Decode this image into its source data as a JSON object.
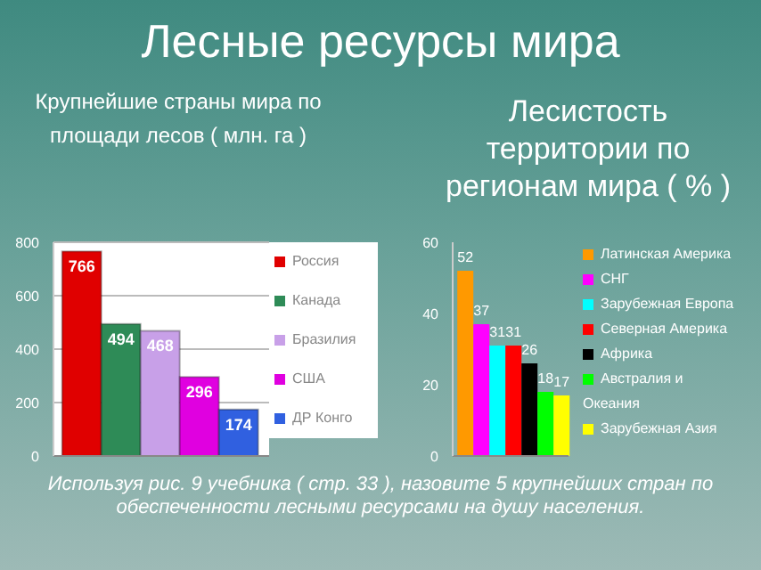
{
  "chart_data": [
    {
      "type": "bar",
      "title": "Лесные ресурсы мира",
      "subtitle": "Крупнейшие страны мира по площади лесов ( млн. га )",
      "categories": [
        null
      ],
      "series": [
        {
          "name": "Россия",
          "color": "#e00000",
          "values": [
            766
          ]
        },
        {
          "name": "Канада",
          "color": "#2e8b57",
          "values": [
            494
          ]
        },
        {
          "name": "Бразилия",
          "color": "#c8a0e8",
          "values": [
            468
          ]
        },
        {
          "name": "США",
          "color": "#e000e0",
          "values": [
            296
          ]
        },
        {
          "name": "ДР Конго",
          "color": "#3060e0",
          "values": [
            174
          ]
        }
      ],
      "ylim": [
        0,
        800
      ],
      "yticks": [
        0,
        200,
        400,
        600,
        800
      ],
      "grid": "y",
      "legend": "right",
      "data_labels": true,
      "annotations": [
        "Используя рис. 9 учебника ( стр. 33 ), назовите 5 крупнейших стран по обеспеченности лесными ресурсами на душу населения."
      ]
    },
    {
      "type": "bar",
      "title": "Лесистость территории по регионам мира ( % )",
      "categories": [
        null
      ],
      "series": [
        {
          "name": "Латинская Америка",
          "color": "#ff9900",
          "values": [
            52
          ]
        },
        {
          "name": "СНГ",
          "color": "#ff00ff",
          "values": [
            37
          ]
        },
        {
          "name": "Зарубежная Европа",
          "color": "#00ffff",
          "values": [
            31
          ]
        },
        {
          "name": "Северная Америка",
          "color": "#ff0000",
          "values": [
            31
          ]
        },
        {
          "name": "Африка",
          "color": "#000000",
          "values": [
            26
          ]
        },
        {
          "name": "Австралия и Океания",
          "color": "#00ff00",
          "values": [
            18
          ]
        },
        {
          "name": "Зарубежная Азия",
          "color": "#ffff00",
          "values": [
            17
          ]
        }
      ],
      "ylim": [
        0,
        60
      ],
      "yticks": [
        0,
        20,
        40,
        60
      ],
      "grid": false,
      "legend": "right",
      "data_labels": true
    }
  ]
}
